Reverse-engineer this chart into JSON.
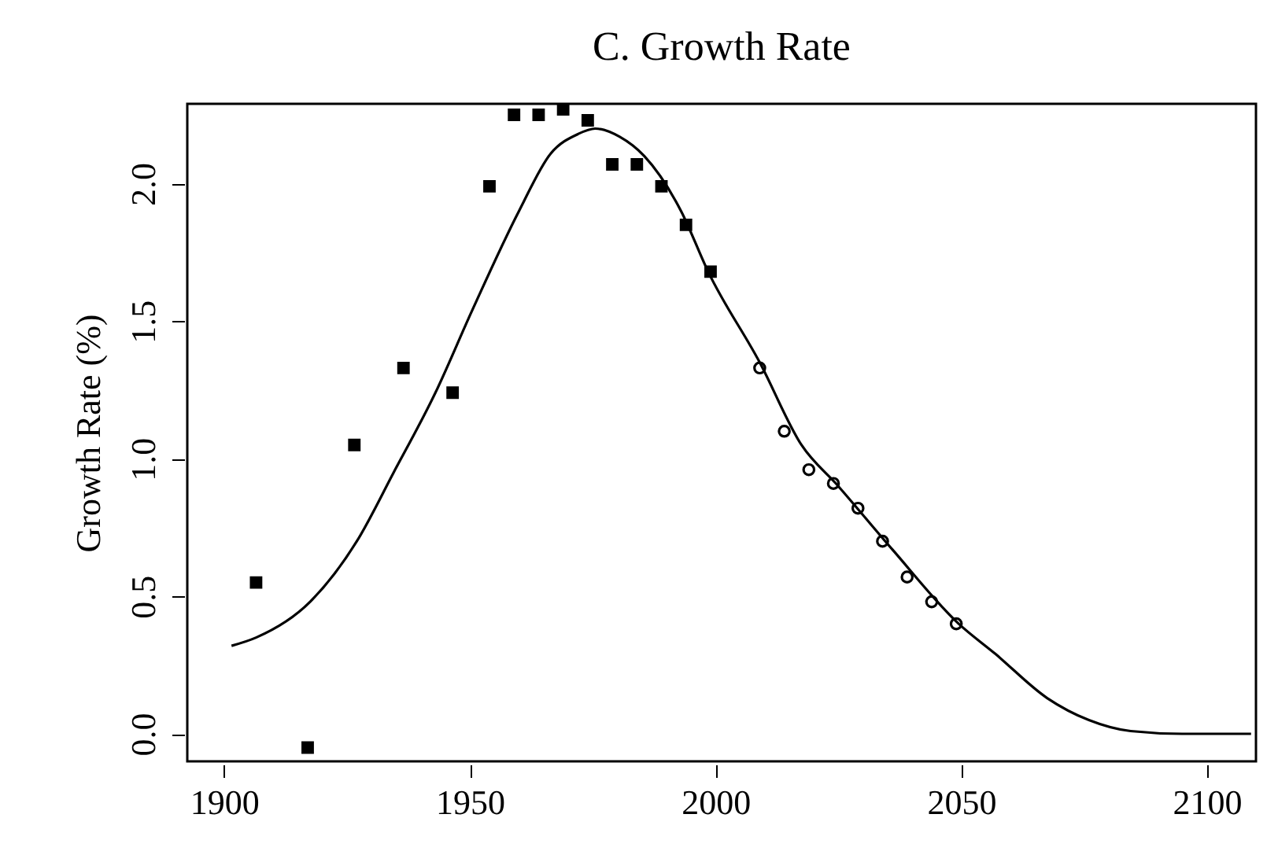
{
  "chart_data": {
    "type": "scatter",
    "title": "C. Growth Rate",
    "ylabel": "Growth Rate (%)",
    "xlim": [
      1892.5,
      2110
    ],
    "ylim": [
      -0.1,
      2.29
    ],
    "xticks": [
      1900,
      1950,
      2000,
      2050,
      2100
    ],
    "yticks": [
      {
        "value": 0,
        "label": "0.0"
      },
      {
        "value": 0.5,
        "label": "0.5"
      },
      {
        "value": 1,
        "label": "1.0"
      },
      {
        "value": 1.5,
        "label": "1.5"
      },
      {
        "value": 2,
        "label": "2.0"
      }
    ],
    "grid": false,
    "series": [
      {
        "marker": "square",
        "color": "#000000",
        "x": [
          1906.5,
          1917,
          1926.5,
          1936.5,
          1946.5,
          1954,
          1959,
          1964,
          1969,
          1974,
          1979,
          1984,
          1989,
          1994,
          1999
        ],
        "values": [
          0.55,
          -0.05,
          1.05,
          1.33,
          1.24,
          1.99,
          2.25,
          2.25,
          2.27,
          2.23,
          2.07,
          2.07,
          1.99,
          1.85,
          1.68
        ]
      },
      {
        "marker": "circle",
        "color": "#000000",
        "x": [
          2009,
          2014,
          2019,
          2024,
          2029,
          2034,
          2039,
          2044,
          2049
        ],
        "values": [
          1.33,
          1.1,
          0.96,
          0.91,
          0.82,
          0.7,
          0.57,
          0.48,
          0.4
        ]
      },
      {
        "type": "line",
        "marker": "none",
        "line_style": "solid",
        "color": "#000000",
        "x": [
          1901.5,
          1906.5,
          1917.5,
          1927,
          1934.5,
          1943,
          1950.5,
          1960,
          1966.5,
          1972,
          1975.5,
          1980.5,
          1985.5,
          1993,
          1998.5,
          2009,
          2017.5,
          2025,
          2036,
          2049.5,
          2057,
          2067.5,
          2076,
          2084.5,
          2095,
          2109
        ],
        "values": [
          0.32,
          0.35,
          0.48,
          0.7,
          0.95,
          1.24,
          1.54,
          1.9,
          2.11,
          2.18,
          2.2,
          2.17,
          2.1,
          1.9,
          1.68,
          1.35,
          1.05,
          0.9,
          0.67,
          0.4,
          0.29,
          0.13,
          0.05,
          0.01,
          0.0,
          0.0
        ]
      }
    ]
  }
}
